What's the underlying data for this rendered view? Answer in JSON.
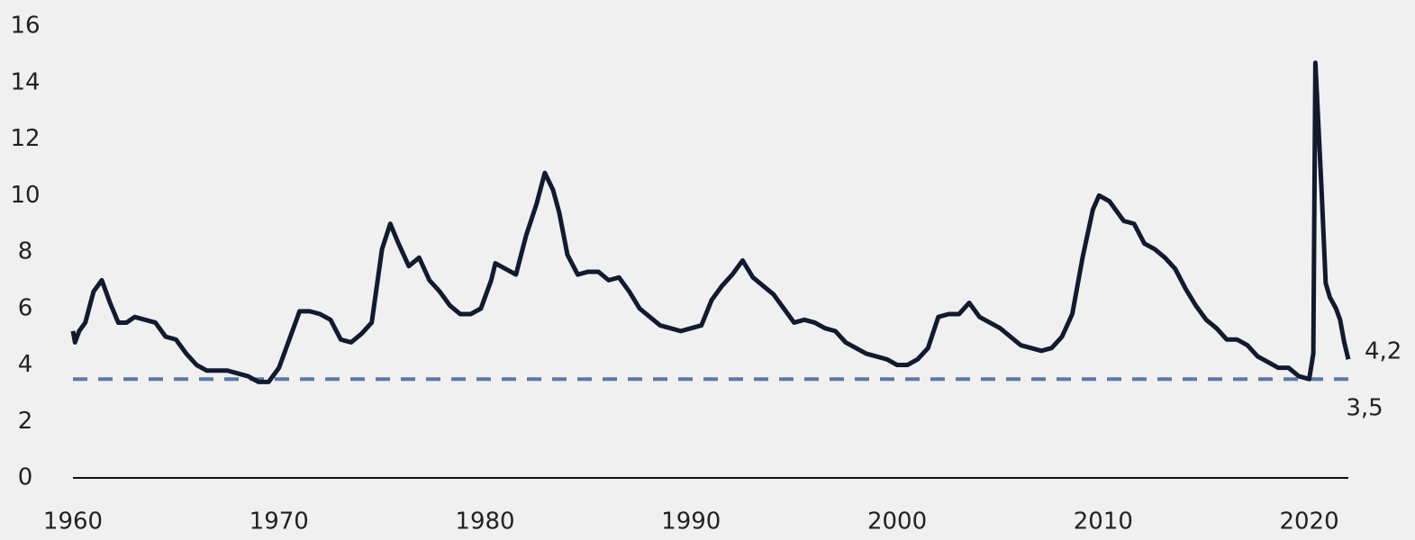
{
  "chart_data": {
    "type": "line",
    "x": [
      1960.0,
      1960.1,
      1960.3,
      1960.6,
      1961.0,
      1961.4,
      1961.8,
      1962.2,
      1962.6,
      1963.0,
      1963.5,
      1964.0,
      1964.5,
      1965.0,
      1965.5,
      1966.0,
      1966.5,
      1967.0,
      1967.5,
      1968.0,
      1968.5,
      1969.0,
      1969.5,
      1970.0,
      1970.5,
      1971.0,
      1971.5,
      1972.0,
      1972.5,
      1973.0,
      1973.5,
      1974.0,
      1974.5,
      1975.0,
      1975.4,
      1975.8,
      1976.3,
      1976.8,
      1977.3,
      1977.8,
      1978.3,
      1978.8,
      1979.3,
      1979.8,
      1980.3,
      1980.5,
      1981.0,
      1981.5,
      1982.0,
      1982.5,
      1982.9,
      1983.3,
      1983.6,
      1984.0,
      1984.5,
      1985.0,
      1985.5,
      1986.0,
      1986.5,
      1987.0,
      1987.5,
      1988.0,
      1988.5,
      1989.0,
      1989.5,
      1990.0,
      1990.5,
      1991.0,
      1991.5,
      1992.0,
      1992.5,
      1993.0,
      1993.5,
      1994.0,
      1994.5,
      1995.0,
      1995.5,
      1996.0,
      1996.5,
      1997.0,
      1997.5,
      1998.0,
      1998.5,
      1999.0,
      1999.5,
      2000.0,
      2000.5,
      2001.0,
      2001.5,
      2002.0,
      2002.5,
      2003.0,
      2003.5,
      2004.0,
      2004.5,
      2005.0,
      2005.5,
      2006.0,
      2006.5,
      2007.0,
      2007.5,
      2008.0,
      2008.5,
      2009.0,
      2009.5,
      2009.8,
      2010.3,
      2010.6,
      2011.0,
      2011.5,
      2012.0,
      2012.5,
      2013.0,
      2013.5,
      2014.0,
      2014.5,
      2015.0,
      2015.5,
      2016.0,
      2016.5,
      2017.0,
      2017.5,
      2018.0,
      2018.5,
      2019.0,
      2019.5,
      2020.0,
      2020.2,
      2020.3,
      2020.6,
      2020.8,
      2021.0,
      2021.3,
      2021.5,
      2021.7,
      2021.9
    ],
    "series": [
      {
        "color": "#111a2e",
        "values": [
          5.2,
          4.8,
          5.2,
          5.5,
          6.6,
          7.0,
          6.2,
          5.5,
          5.5,
          5.7,
          5.6,
          5.5,
          5.0,
          4.9,
          4.4,
          4.0,
          3.8,
          3.8,
          3.8,
          3.7,
          3.6,
          3.4,
          3.4,
          3.9,
          4.9,
          5.9,
          5.9,
          5.8,
          5.6,
          4.9,
          4.8,
          5.1,
          5.5,
          8.1,
          9.0,
          8.3,
          7.5,
          7.8,
          7.0,
          6.6,
          6.1,
          5.8,
          5.8,
          6.0,
          7.0,
          7.6,
          7.4,
          7.2,
          8.6,
          9.7,
          10.8,
          10.2,
          9.4,
          7.9,
          7.2,
          7.3,
          7.3,
          7.0,
          7.1,
          6.6,
          6.0,
          5.7,
          5.4,
          5.3,
          5.2,
          5.3,
          5.4,
          6.3,
          6.8,
          7.2,
          7.7,
          7.1,
          6.8,
          6.5,
          6.0,
          5.5,
          5.6,
          5.5,
          5.3,
          5.2,
          4.8,
          4.6,
          4.4,
          4.3,
          4.2,
          4.0,
          4.0,
          4.2,
          4.6,
          5.7,
          5.8,
          5.8,
          6.2,
          5.7,
          5.5,
          5.3,
          5.0,
          4.7,
          4.6,
          4.5,
          4.6,
          5.0,
          5.8,
          7.8,
          9.5,
          10.0,
          9.8,
          9.5,
          9.1,
          9.0,
          8.3,
          8.1,
          7.8,
          7.4,
          6.7,
          6.1,
          5.6,
          5.3,
          4.9,
          4.9,
          4.7,
          4.3,
          4.1,
          3.9,
          3.9,
          3.6,
          3.5,
          4.4,
          14.7,
          10.2,
          6.9,
          6.4,
          6.0,
          5.6,
          4.8,
          4.2
        ]
      }
    ],
    "reference_line": {
      "value": 3.5,
      "label": "3,5",
      "color": "#5a78a8"
    },
    "annotations": [
      {
        "x": 2021.9,
        "y": 4.2,
        "label": "4,2"
      }
    ],
    "xlim": [
      1960,
      2021.9
    ],
    "xticks": [
      1960,
      1970,
      1980,
      1990,
      2000,
      2010,
      2020
    ],
    "ylim": [
      0,
      16
    ],
    "yticks": [
      0,
      2,
      4,
      6,
      8,
      10,
      12,
      14,
      16
    ]
  }
}
